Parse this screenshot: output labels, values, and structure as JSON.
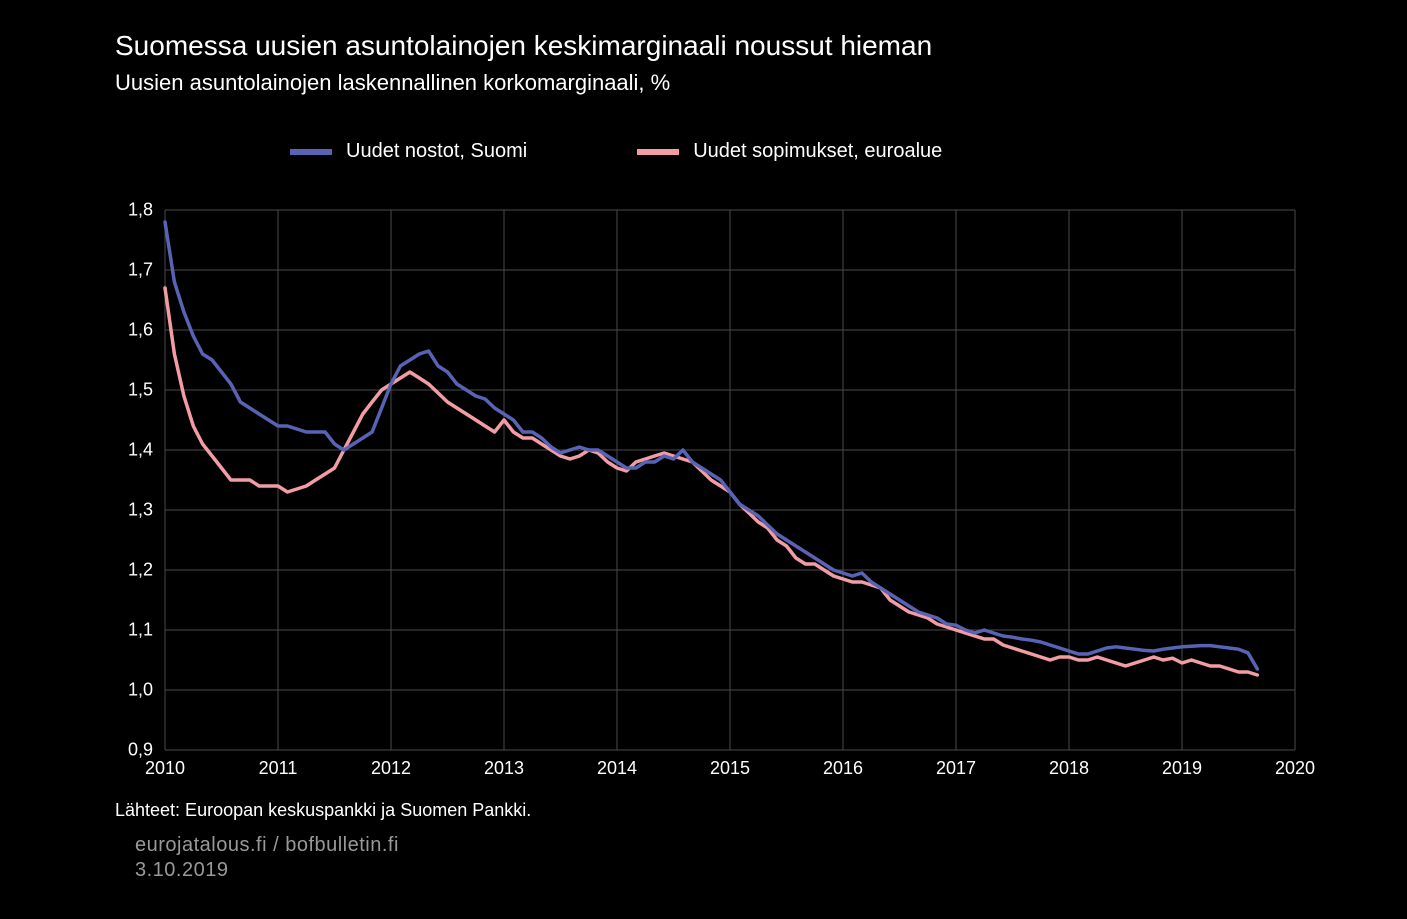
{
  "title": "Suomessa uusien asuntolainojen keskimarginaali noussut hieman",
  "subtitle": "Uusien asuntolainojen laskennallinen korkomarginaali, %",
  "legend": {
    "items": [
      {
        "key": "fi",
        "label": "Uudet nostot, Suomi",
        "color": "#5863b5"
      },
      {
        "key": "ea",
        "label": "Uudet sopimukset, euroalue",
        "color": "#f29ca4"
      }
    ]
  },
  "chart": {
    "type": "line",
    "background_color": "#000000",
    "text_color": "#ffffff",
    "grid_color": "#4a4a4a",
    "line_width": 3.5,
    "ylim": [
      0.9,
      1.8
    ],
    "yticks": [
      0.9,
      1.0,
      1.1,
      1.2,
      1.3,
      1.4,
      1.5,
      1.6,
      1.7,
      1.8
    ],
    "ytick_labels": [
      "0,9",
      "1,0",
      "1,1",
      "1,2",
      "1,3",
      "1,4",
      "1,5",
      "1,6",
      "1,7",
      "1,8"
    ],
    "xlim": [
      2010,
      2020
    ],
    "xticks": [
      2010,
      2011,
      2012,
      2013,
      2014,
      2015,
      2016,
      2017,
      2018,
      2019,
      2020
    ],
    "xtick_labels": [
      "2010",
      "2011",
      "2012",
      "2013",
      "2014",
      "2015",
      "2016",
      "2017",
      "2018",
      "2019",
      "2020"
    ],
    "series": {
      "fi": {
        "color": "#5863b5",
        "x": [
          2010.0,
          2010.083,
          2010.167,
          2010.25,
          2010.333,
          2010.417,
          2010.5,
          2010.583,
          2010.667,
          2010.75,
          2010.833,
          2010.917,
          2011.0,
          2011.083,
          2011.167,
          2011.25,
          2011.333,
          2011.417,
          2011.5,
          2011.583,
          2011.667,
          2011.75,
          2011.833,
          2011.917,
          2012.0,
          2012.083,
          2012.167,
          2012.25,
          2012.333,
          2012.417,
          2012.5,
          2012.583,
          2012.667,
          2012.75,
          2012.833,
          2012.917,
          2013.0,
          2013.083,
          2013.167,
          2013.25,
          2013.333,
          2013.417,
          2013.5,
          2013.583,
          2013.667,
          2013.75,
          2013.833,
          2013.917,
          2014.0,
          2014.083,
          2014.167,
          2014.25,
          2014.333,
          2014.417,
          2014.5,
          2014.583,
          2014.667,
          2014.75,
          2014.833,
          2014.917,
          2015.0,
          2015.083,
          2015.167,
          2015.25,
          2015.333,
          2015.417,
          2015.5,
          2015.583,
          2015.667,
          2015.75,
          2015.833,
          2015.917,
          2016.0,
          2016.083,
          2016.167,
          2016.25,
          2016.333,
          2016.417,
          2016.5,
          2016.583,
          2016.667,
          2016.75,
          2016.833,
          2016.917,
          2017.0,
          2017.083,
          2017.167,
          2017.25,
          2017.333,
          2017.417,
          2017.5,
          2017.583,
          2017.667,
          2017.75,
          2017.833,
          2017.917,
          2018.0,
          2018.083,
          2018.167,
          2018.25,
          2018.333,
          2018.417,
          2018.5,
          2018.583,
          2018.667,
          2018.75,
          2018.833,
          2018.917,
          2019.0,
          2019.083,
          2019.167,
          2019.25,
          2019.333,
          2019.417,
          2019.5,
          2019.583,
          2019.667
        ],
        "y": [
          1.78,
          1.68,
          1.63,
          1.59,
          1.56,
          1.55,
          1.53,
          1.51,
          1.48,
          1.47,
          1.46,
          1.45,
          1.44,
          1.44,
          1.435,
          1.43,
          1.43,
          1.43,
          1.41,
          1.4,
          1.41,
          1.42,
          1.43,
          1.47,
          1.51,
          1.54,
          1.55,
          1.56,
          1.565,
          1.54,
          1.53,
          1.51,
          1.5,
          1.49,
          1.485,
          1.47,
          1.46,
          1.45,
          1.43,
          1.43,
          1.42,
          1.405,
          1.395,
          1.4,
          1.405,
          1.4,
          1.4,
          1.39,
          1.38,
          1.37,
          1.37,
          1.38,
          1.38,
          1.39,
          1.385,
          1.4,
          1.38,
          1.37,
          1.36,
          1.35,
          1.33,
          1.31,
          1.3,
          1.29,
          1.275,
          1.26,
          1.25,
          1.24,
          1.23,
          1.22,
          1.21,
          1.2,
          1.195,
          1.19,
          1.195,
          1.18,
          1.17,
          1.16,
          1.15,
          1.14,
          1.13,
          1.125,
          1.12,
          1.11,
          1.108,
          1.1,
          1.095,
          1.1,
          1.095,
          1.09,
          1.088,
          1.085,
          1.083,
          1.08,
          1.075,
          1.07,
          1.065,
          1.06,
          1.06,
          1.065,
          1.07,
          1.072,
          1.07,
          1.068,
          1.066,
          1.065,
          1.068,
          1.07,
          1.072,
          1.073,
          1.074,
          1.074,
          1.072,
          1.07,
          1.068,
          1.062,
          1.035
        ]
      },
      "ea": {
        "color": "#f29ca4",
        "x": [
          2010.0,
          2010.083,
          2010.167,
          2010.25,
          2010.333,
          2010.417,
          2010.5,
          2010.583,
          2010.667,
          2010.75,
          2010.833,
          2010.917,
          2011.0,
          2011.083,
          2011.167,
          2011.25,
          2011.333,
          2011.417,
          2011.5,
          2011.583,
          2011.667,
          2011.75,
          2011.833,
          2011.917,
          2012.0,
          2012.083,
          2012.167,
          2012.25,
          2012.333,
          2012.417,
          2012.5,
          2012.583,
          2012.667,
          2012.75,
          2012.833,
          2012.917,
          2013.0,
          2013.083,
          2013.167,
          2013.25,
          2013.333,
          2013.417,
          2013.5,
          2013.583,
          2013.667,
          2013.75,
          2013.833,
          2013.917,
          2014.0,
          2014.083,
          2014.167,
          2014.25,
          2014.333,
          2014.417,
          2014.5,
          2014.583,
          2014.667,
          2014.75,
          2014.833,
          2014.917,
          2015.0,
          2015.083,
          2015.167,
          2015.25,
          2015.333,
          2015.417,
          2015.5,
          2015.583,
          2015.667,
          2015.75,
          2015.833,
          2015.917,
          2016.0,
          2016.083,
          2016.167,
          2016.25,
          2016.333,
          2016.417,
          2016.5,
          2016.583,
          2016.667,
          2016.75,
          2016.833,
          2016.917,
          2017.0,
          2017.083,
          2017.167,
          2017.25,
          2017.333,
          2017.417,
          2017.5,
          2017.583,
          2017.667,
          2017.75,
          2017.833,
          2017.917,
          2018.0,
          2018.083,
          2018.167,
          2018.25,
          2018.333,
          2018.417,
          2018.5,
          2018.583,
          2018.667,
          2018.75,
          2018.833,
          2018.917,
          2019.0,
          2019.083,
          2019.167,
          2019.25,
          2019.333,
          2019.417,
          2019.5,
          2019.583,
          2019.667
        ],
        "y": [
          1.67,
          1.56,
          1.49,
          1.44,
          1.41,
          1.39,
          1.37,
          1.35,
          1.35,
          1.35,
          1.34,
          1.34,
          1.34,
          1.33,
          1.335,
          1.34,
          1.35,
          1.36,
          1.37,
          1.4,
          1.43,
          1.46,
          1.48,
          1.5,
          1.51,
          1.52,
          1.53,
          1.52,
          1.51,
          1.495,
          1.48,
          1.47,
          1.46,
          1.45,
          1.44,
          1.43,
          1.45,
          1.43,
          1.42,
          1.42,
          1.41,
          1.4,
          1.39,
          1.385,
          1.39,
          1.4,
          1.395,
          1.38,
          1.37,
          1.365,
          1.38,
          1.385,
          1.39,
          1.395,
          1.39,
          1.385,
          1.38,
          1.365,
          1.35,
          1.34,
          1.33,
          1.31,
          1.295,
          1.28,
          1.27,
          1.25,
          1.24,
          1.22,
          1.21,
          1.21,
          1.2,
          1.19,
          1.185,
          1.18,
          1.18,
          1.175,
          1.17,
          1.15,
          1.14,
          1.13,
          1.125,
          1.12,
          1.11,
          1.105,
          1.1,
          1.095,
          1.09,
          1.085,
          1.085,
          1.075,
          1.07,
          1.065,
          1.06,
          1.055,
          1.05,
          1.055,
          1.055,
          1.05,
          1.05,
          1.055,
          1.05,
          1.045,
          1.04,
          1.045,
          1.05,
          1.055,
          1.05,
          1.053,
          1.045,
          1.05,
          1.045,
          1.04,
          1.04,
          1.035,
          1.03,
          1.03,
          1.025
        ]
      }
    }
  },
  "source_text": "Lähteet: Euroopan keskuspankki ja Suomen Pankki.",
  "watermark_line1": "eurojatalous.fi / bofbulletin.fi",
  "watermark_line2": "3.10.2019"
}
